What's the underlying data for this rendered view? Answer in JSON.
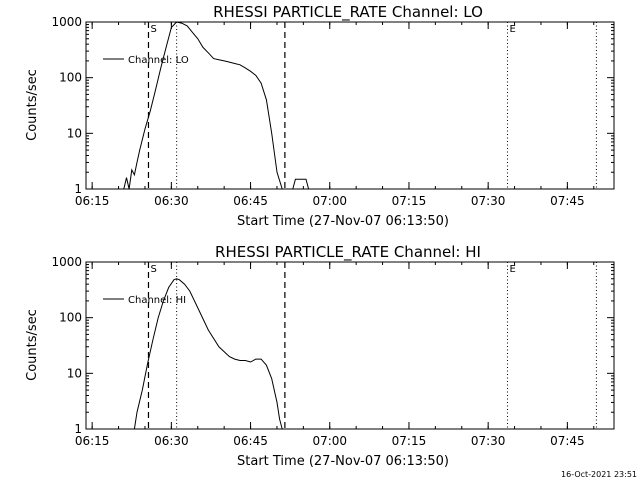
{
  "footer": {
    "timestamp": "16-Oct-2021 23:51"
  },
  "chart_data": [
    {
      "type": "line",
      "title": "RHESSI PARTICLE_RATE Channel: LO",
      "xlabel": "Start Time (27-Nov-07 06:13:50)",
      "ylabel": "Counts/sec",
      "y_scale": "log",
      "ylim": [
        1,
        1000
      ],
      "xlim": [
        "06:13:50",
        "07:53:50"
      ],
      "x_ticks": [
        "06:15",
        "06:30",
        "06:45",
        "07:00",
        "07:15",
        "07:30",
        "07:45"
      ],
      "y_ticks": [
        "1",
        "10",
        "100",
        "1000"
      ],
      "grid": false,
      "legend_position": "upper-left",
      "markers": [
        {
          "label": "S",
          "time": "06:25:40",
          "style": "dashed"
        },
        {
          "label": "",
          "time": "06:31:00",
          "style": "dotted"
        },
        {
          "label": "",
          "time": "06:51:30",
          "style": "dashed"
        },
        {
          "label": "E",
          "time": "07:33:40",
          "style": "dotted"
        },
        {
          "label": "",
          "time": "07:50:30",
          "style": "dotted"
        }
      ],
      "series": [
        {
          "name": "Channel: LO",
          "x": [
            "06:13:50",
            "06:19:00",
            "06:21:00",
            "06:21:30",
            "06:22:00",
            "06:22:30",
            "06:23:00",
            "06:23:30",
            "06:24:00",
            "06:25:00",
            "06:26:00",
            "06:27:00",
            "06:28:00",
            "06:29:00",
            "06:30:00",
            "06:31:00",
            "06:32:00",
            "06:33:00",
            "06:34:00",
            "06:35:00",
            "06:36:00",
            "06:37:00",
            "06:38:00",
            "06:39:00",
            "06:40:00",
            "06:41:00",
            "06:42:00",
            "06:43:00",
            "06:44:00",
            "06:45:00",
            "06:46:00",
            "06:47:00",
            "06:48:00",
            "06:49:00",
            "06:50:00",
            "06:51:00",
            "06:52:00",
            "06:53:00",
            "06:53:30",
            "06:54:00",
            "06:54:30",
            "06:55:30",
            "06:56:00",
            "07:53:50"
          ],
          "y": [
            1,
            1,
            1,
            1.6,
            1,
            2.2,
            1.8,
            3,
            5,
            12,
            25,
            60,
            150,
            350,
            800,
            1000,
            950,
            850,
            650,
            500,
            350,
            280,
            220,
            210,
            200,
            190,
            180,
            170,
            150,
            130,
            110,
            80,
            40,
            10,
            2,
            1,
            1,
            1,
            1.5,
            1.5,
            1.5,
            1.5,
            1,
            1
          ]
        }
      ]
    },
    {
      "type": "line",
      "title": "RHESSI PARTICLE_RATE Channel: HI",
      "xlabel": "Start Time (27-Nov-07 06:13:50)",
      "ylabel": "Counts/sec",
      "y_scale": "log",
      "ylim": [
        1,
        1000
      ],
      "xlim": [
        "06:13:50",
        "07:53:50"
      ],
      "x_ticks": [
        "06:15",
        "06:30",
        "06:45",
        "07:00",
        "07:15",
        "07:30",
        "07:45"
      ],
      "y_ticks": [
        "1",
        "10",
        "100",
        "1000"
      ],
      "grid": false,
      "legend_position": "upper-left",
      "markers": [
        {
          "label": "S",
          "time": "06:25:40",
          "style": "dashed"
        },
        {
          "label": "",
          "time": "06:31:00",
          "style": "dotted"
        },
        {
          "label": "",
          "time": "06:51:30",
          "style": "dashed"
        },
        {
          "label": "E",
          "time": "07:33:40",
          "style": "dotted"
        },
        {
          "label": "",
          "time": "07:50:30",
          "style": "dotted"
        }
      ],
      "series": [
        {
          "name": "Channel: HI",
          "x": [
            "06:23:00",
            "06:23:30",
            "06:24:30",
            "06:25:30",
            "06:26:30",
            "06:27:30",
            "06:28:30",
            "06:29:30",
            "06:30:30",
            "06:31:00",
            "06:31:30",
            "06:32:30",
            "06:33:30",
            "06:35:00",
            "06:37:00",
            "06:39:00",
            "06:41:00",
            "06:42:00",
            "06:43:00",
            "06:44:00",
            "06:45:00",
            "06:46:00",
            "06:47:00",
            "06:48:00",
            "06:49:00",
            "06:50:00",
            "06:50:30",
            "06:51:00"
          ],
          "y": [
            1,
            2,
            5,
            15,
            40,
            100,
            200,
            350,
            480,
            500,
            480,
            400,
            300,
            150,
            60,
            30,
            20,
            18,
            17,
            17,
            16,
            18,
            18,
            14,
            8,
            3,
            1.5,
            1
          ]
        }
      ]
    }
  ]
}
